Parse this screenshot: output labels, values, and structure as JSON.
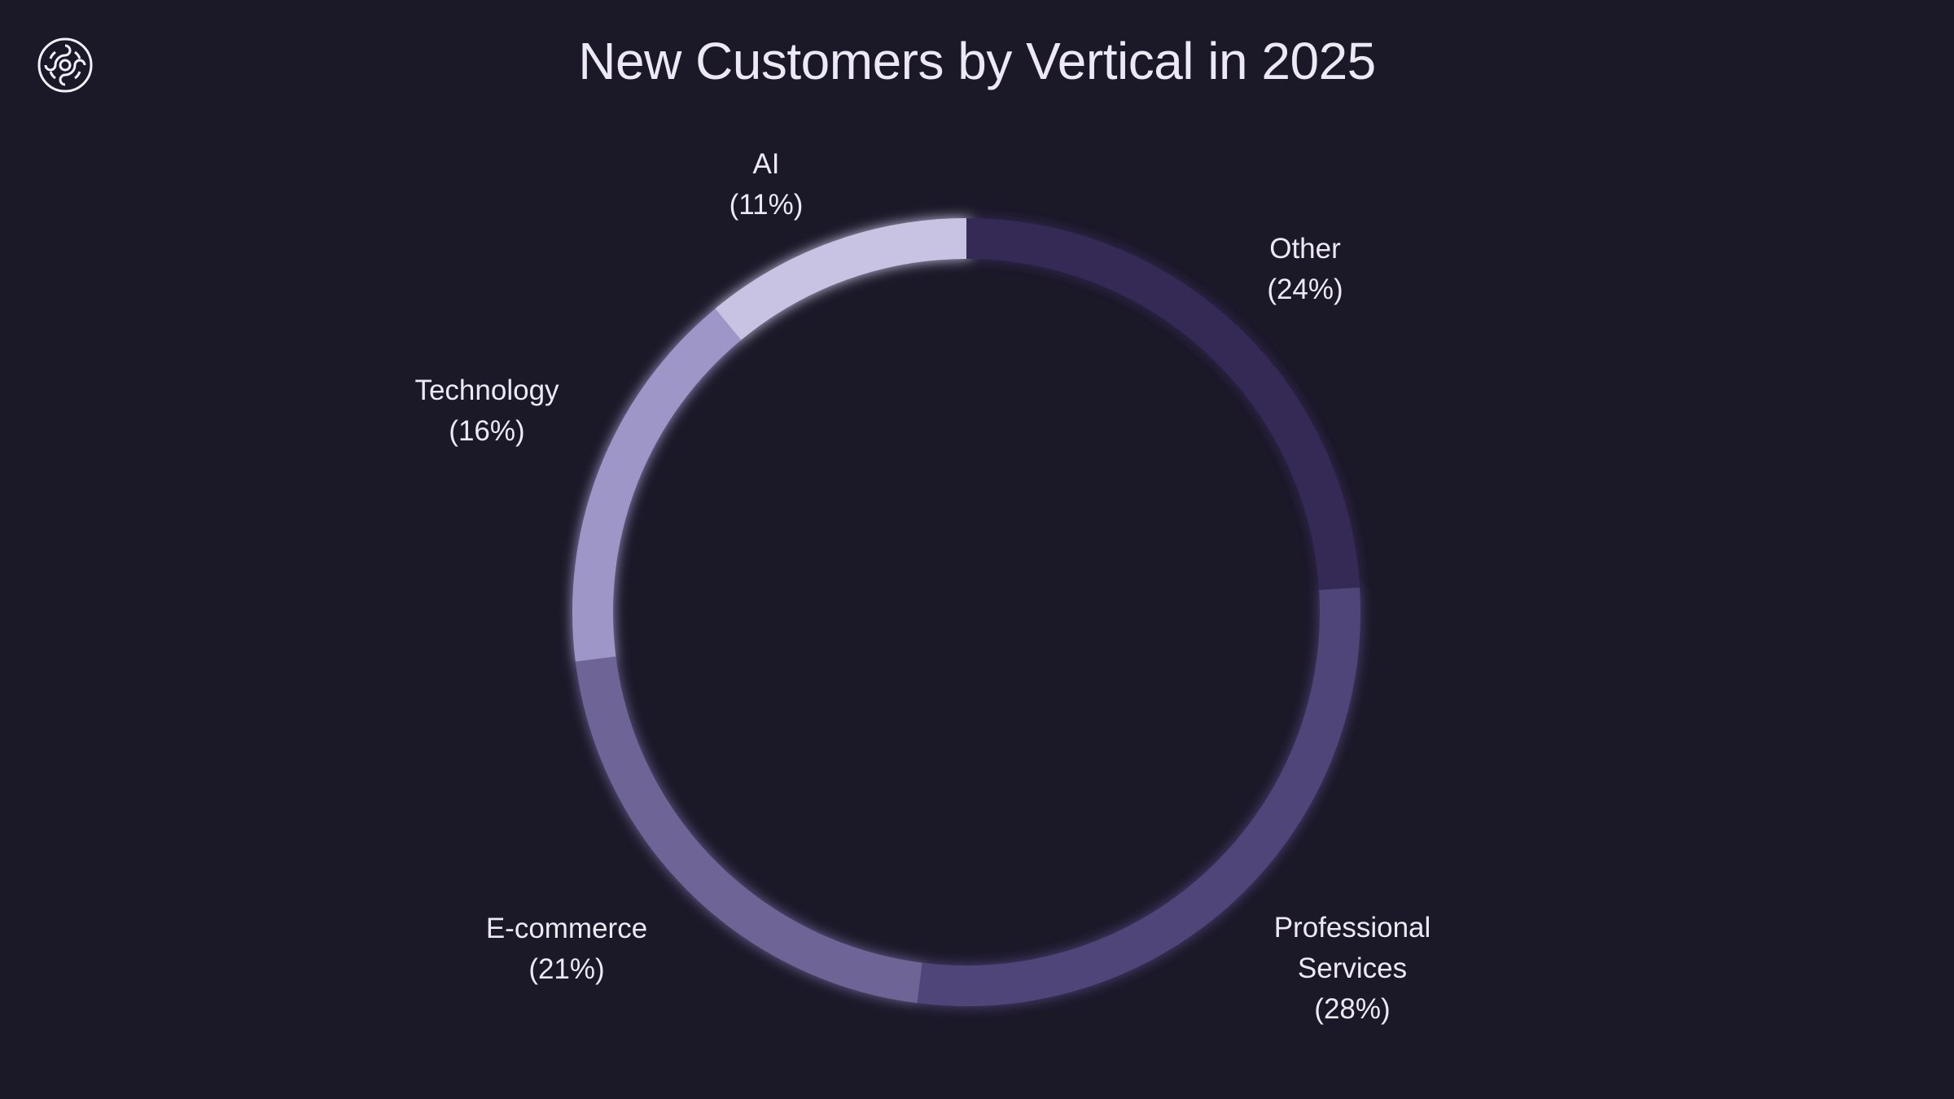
{
  "logo": {
    "icon": "ornamental-knot-logo"
  },
  "chart_data": {
    "type": "pie",
    "subtype": "donut",
    "title": "New Customers by Vertical in 2025",
    "start": "top, clockwise",
    "slices": [
      {
        "label": "Other",
        "value": 24,
        "display": "(24%)",
        "color": "#352b55"
      },
      {
        "label": "Professional Services",
        "lines": [
          "Professional",
          "Services"
        ],
        "value": 28,
        "display": "(28%)",
        "color": "#4f4478"
      },
      {
        "label": "E-commerce",
        "value": 21,
        "display": "(21%)",
        "color": "#6e6596"
      },
      {
        "label": "Technology",
        "value": 16,
        "display": "(16%)",
        "color": "#9e96c6"
      },
      {
        "label": "AI",
        "value": 11,
        "display": "(11%)",
        "color": "#c9c3e3"
      }
    ],
    "background": "#1b1828"
  }
}
